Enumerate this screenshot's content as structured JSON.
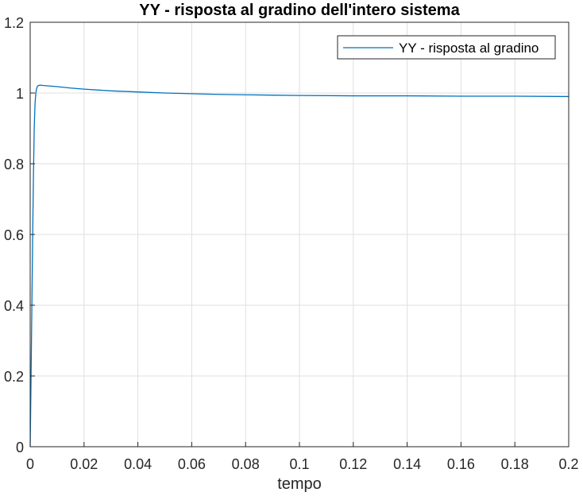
{
  "chart_data": {
    "type": "line",
    "title": "YY - risposta al gradino dell'intero sistema",
    "xlabel": "tempo",
    "ylabel": "",
    "xlim": [
      0,
      0.2
    ],
    "ylim": [
      0,
      1.2
    ],
    "xticks": [
      0,
      0.02,
      0.04,
      0.06,
      0.08,
      0.1,
      0.12,
      0.14,
      0.16,
      0.18,
      0.2
    ],
    "xtick_labels": [
      "0",
      "0.02",
      "0.04",
      "0.06",
      "0.08",
      "0.1",
      "0.12",
      "0.14",
      "0.16",
      "0.18",
      "0.2"
    ],
    "yticks": [
      0,
      0.2,
      0.4,
      0.6,
      0.8,
      1,
      1.2
    ],
    "ytick_labels": [
      "0",
      "0.2",
      "0.4",
      "0.6",
      "0.8",
      "1",
      "1.2"
    ],
    "grid": true,
    "legend_position": "top-right",
    "series": [
      {
        "name": "YY - risposta al gradino",
        "color": "#0072BD",
        "x": [
          0,
          0.0003,
          0.0006,
          0.0009,
          0.0012,
          0.0015,
          0.0018,
          0.0021,
          0.0024,
          0.0027,
          0.003,
          0.0035,
          0.004,
          0.005,
          0.007,
          0.01,
          0.015,
          0.02,
          0.03,
          0.04,
          0.05,
          0.06,
          0.07,
          0.08,
          0.09,
          0.1,
          0.12,
          0.14,
          0.16,
          0.18,
          0.2
        ],
        "y": [
          0,
          0.18,
          0.38,
          0.58,
          0.76,
          0.9,
          0.97,
          1.0,
          1.013,
          1.019,
          1.021,
          1.022,
          1.022,
          1.021,
          1.02,
          1.018,
          1.014,
          1.011,
          1.006,
          1.003,
          1.0,
          0.998,
          0.996,
          0.995,
          0.994,
          0.993,
          0.992,
          0.992,
          0.991,
          0.991,
          0.99
        ]
      }
    ]
  }
}
